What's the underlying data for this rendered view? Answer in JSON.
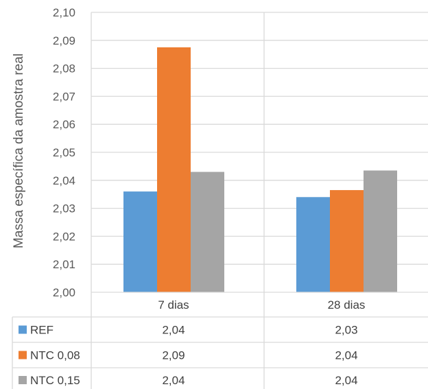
{
  "chart_data": {
    "type": "bar",
    "categories": [
      "7 dias",
      "28 dias"
    ],
    "ylabel": "Massa específica da amostra real",
    "ylim": [
      2.0,
      2.1
    ],
    "yticks": [
      "2,00",
      "2,01",
      "2,02",
      "2,03",
      "2,04",
      "2,05",
      "2,06",
      "2,07",
      "2,08",
      "2,09",
      "2,10"
    ],
    "grid": true,
    "legend": "data-table",
    "series": [
      {
        "name": "REF",
        "color": "#5B9BD5",
        "values": [
          2.036,
          2.034
        ],
        "table_values": [
          "2,04",
          "2,03"
        ]
      },
      {
        "name": "NTC 0,08",
        "color": "#ED7D31",
        "values": [
          2.0875,
          2.0365
        ],
        "table_values": [
          "2,09",
          "2,04"
        ]
      },
      {
        "name": "NTC 0,15",
        "color": "#A5A5A5",
        "values": [
          2.043,
          2.0435
        ],
        "table_values": [
          "2,04",
          "2,04"
        ]
      }
    ]
  }
}
